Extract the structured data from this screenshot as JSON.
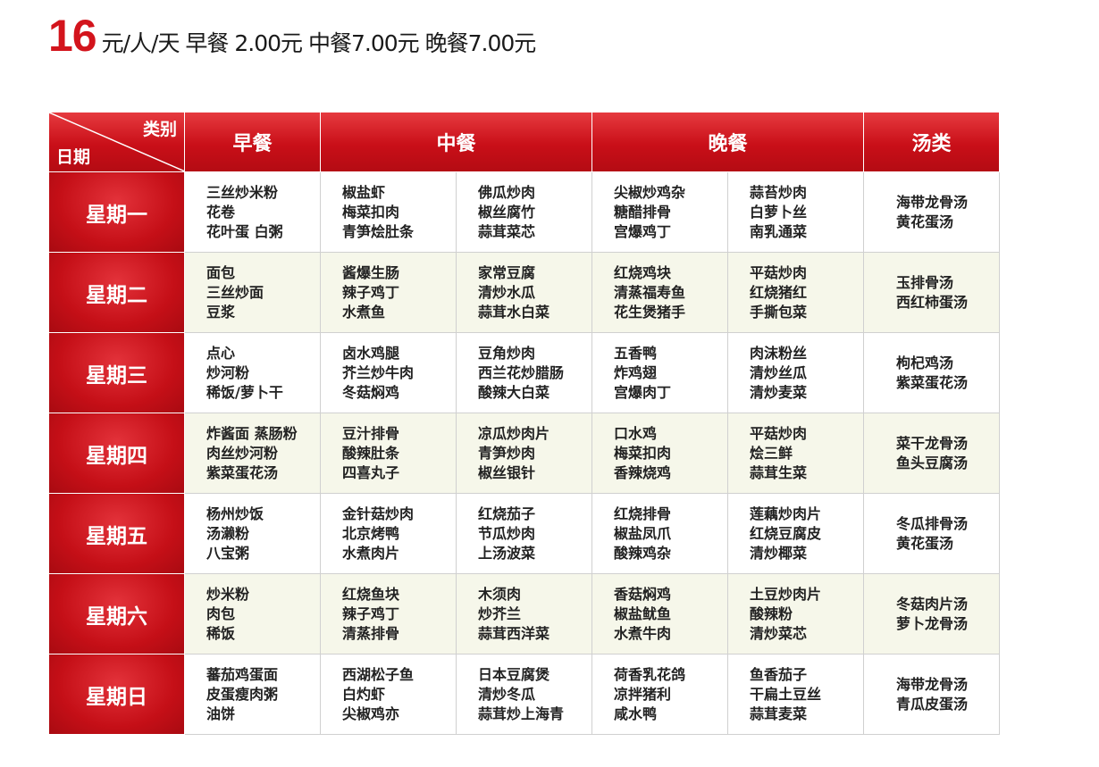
{
  "header": {
    "price": "16",
    "rest": "元/人/天  早餐 2.00元  中餐7.00元  晚餐7.00元"
  },
  "table": {
    "corner_top": "类别",
    "corner_bottom": "日期",
    "columns": [
      "早餐",
      "中餐",
      "晚餐",
      "汤类"
    ],
    "rows": [
      {
        "day": "星期一",
        "breakfast": [
          "三丝炒米粉",
          "花卷",
          "花叶蛋  白粥"
        ],
        "lunch1": [
          "椒盐虾",
          "梅菜扣肉",
          "青笋烩肚条"
        ],
        "lunch2": [
          "佛瓜炒肉",
          "椒丝腐竹",
          "蒜茸菜芯"
        ],
        "dinner1": [
          "尖椒炒鸡杂",
          "糖醋排骨",
          "宫爆鸡丁"
        ],
        "dinner2": [
          "蒜苔炒肉",
          "白萝卜丝",
          "南乳通菜"
        ],
        "soup": [
          "海带龙骨汤",
          "黄花蛋汤"
        ]
      },
      {
        "day": "星期二",
        "breakfast": [
          "面包",
          "三丝炒面",
          "豆浆"
        ],
        "lunch1": [
          "酱爆生肠",
          "辣子鸡丁",
          "水煮鱼"
        ],
        "lunch2": [
          "家常豆腐",
          "清炒水瓜",
          "蒜茸水白菜"
        ],
        "dinner1": [
          "红烧鸡块",
          "清蒸福寿鱼",
          "花生煲猪手"
        ],
        "dinner2": [
          "平菇炒肉",
          "红烧猪红",
          "手撕包菜"
        ],
        "soup": [
          "玉排骨汤",
          "西红柿蛋汤"
        ]
      },
      {
        "day": "星期三",
        "breakfast": [
          "点心",
          "炒河粉",
          "稀饭/萝卜干"
        ],
        "lunch1": [
          "卤水鸡腿",
          "芥兰炒牛肉",
          "冬菇焖鸡"
        ],
        "lunch2": [
          "豆角炒肉",
          "西兰花炒腊肠",
          "酸辣大白菜"
        ],
        "dinner1": [
          "五香鸭",
          "炸鸡翅",
          "宫爆肉丁"
        ],
        "dinner2": [
          "肉沫粉丝",
          "清炒丝瓜",
          "清炒麦菜"
        ],
        "soup": [
          "枸杞鸡汤",
          "紫菜蛋花汤"
        ]
      },
      {
        "day": "星期四",
        "breakfast": [
          "炸酱面  蒸肠粉",
          "肉丝炒河粉",
          "紫菜蛋花汤"
        ],
        "lunch1": [
          "豆汁排骨",
          "酸辣肚条",
          "四喜丸子"
        ],
        "lunch2": [
          "凉瓜炒肉片",
          "青笋炒肉",
          "椒丝银针"
        ],
        "dinner1": [
          "口水鸡",
          "梅菜扣肉",
          "香辣烧鸡"
        ],
        "dinner2": [
          "平菇炒肉",
          "烩三鲜",
          "蒜茸生菜"
        ],
        "soup": [
          "菜干龙骨汤",
          "鱼头豆腐汤"
        ]
      },
      {
        "day": "星期五",
        "breakfast": [
          "杨州炒饭",
          "汤濑粉",
          "八宝粥"
        ],
        "lunch1": [
          "金针菇炒肉",
          "北京烤鸭",
          "水煮肉片"
        ],
        "lunch2": [
          "红烧茄子",
          "节瓜炒肉",
          "上汤波菜"
        ],
        "dinner1": [
          "红烧排骨",
          "椒盐凤爪",
          "酸辣鸡杂"
        ],
        "dinner2": [
          "莲藕炒肉片",
          "红烧豆腐皮",
          "清炒椰菜"
        ],
        "soup": [
          "冬瓜排骨汤",
          "黄花蛋汤"
        ]
      },
      {
        "day": "星期六",
        "breakfast": [
          "炒米粉",
          "肉包",
          "稀饭"
        ],
        "lunch1": [
          "红烧鱼块",
          "辣子鸡丁",
          "清蒸排骨"
        ],
        "lunch2": [
          "木须肉",
          "炒芥兰",
          "蒜茸西洋菜"
        ],
        "dinner1": [
          "香菇焖鸡",
          "椒盐鱿鱼",
          "水煮牛肉"
        ],
        "dinner2": [
          "土豆炒肉片",
          "酸辣粉",
          "清炒菜芯"
        ],
        "soup": [
          "冬菇肉片汤",
          "萝卜龙骨汤"
        ]
      },
      {
        "day": "星期日",
        "breakfast": [
          "蕃茄鸡蛋面",
          "皮蛋瘦肉粥",
          "油饼"
        ],
        "lunch1": [
          "西湖松子鱼",
          "白灼虾",
          "尖椒鸡亦"
        ],
        "lunch2": [
          "日本豆腐煲",
          "清炒冬瓜",
          "蒜茸炒上海青"
        ],
        "dinner1": [
          "荷香乳花鸽",
          "凉拌猪利",
          "咸水鸭"
        ],
        "dinner2": [
          "鱼香茄子",
          "干扁土豆丝",
          "蒜茸麦菜"
        ],
        "soup": [
          "海带龙骨汤",
          "青瓜皮蛋汤"
        ]
      }
    ]
  },
  "colors": {
    "accent_red": "#d3141c",
    "alt_row": "#f6f7ea"
  }
}
